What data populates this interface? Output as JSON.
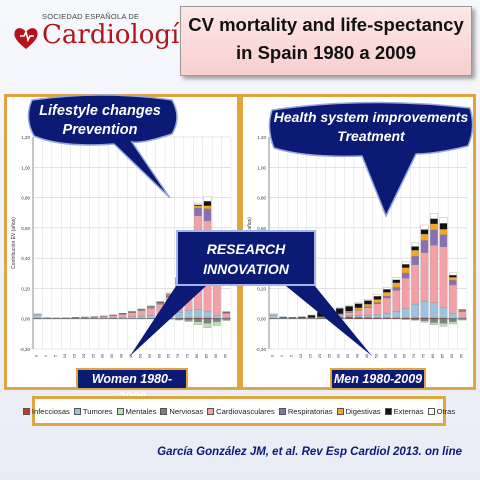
{
  "logo": {
    "top_text": "SOCIEDAD ESPAÑOLA DE",
    "main_text": "Cardiología",
    "brand_color": "#b3131a"
  },
  "title": {
    "line1": "CV mortality and life-spectancy",
    "line2": "in Spain 1980 a 2009"
  },
  "bubbles": {
    "left": {
      "line1": "Lifestyle changes",
      "line2": "Prevention"
    },
    "right": {
      "line1": "Health system improvements",
      "line2": "Treatment"
    },
    "center": {
      "line1": "RESEARCH",
      "line2": "INNOVATION"
    }
  },
  "panel_labels": {
    "women": "Women 1980-2009",
    "men": "Men 1980-2009"
  },
  "citation": "García González JM, et al. Rev Esp Cardiol 2013. on line",
  "chart_data": [
    {
      "type": "bar",
      "stacked": true,
      "panel": "women",
      "ylabel": "Contribución EV (años)",
      "ylim": [
        -0.2,
        1.2
      ],
      "yticks": [
        "1,20",
        "1,00",
        "0,80",
        "0,60",
        "0,40",
        "0,20",
        "0,00",
        "-0,20"
      ],
      "categories": [
        "0",
        "1",
        "5",
        "10",
        "15",
        "20",
        "25",
        "30",
        "35",
        "40",
        "45",
        "50",
        "55",
        "60",
        "65",
        "70",
        "75",
        "80",
        "85",
        "90",
        "95"
      ],
      "series": [
        {
          "name": "Infecciosas",
          "color": "#c0392b",
          "values": [
            0.003,
            0.002,
            0.001,
            0.001,
            0.001,
            0.001,
            0.001,
            0.001,
            0.001,
            0.001,
            0.001,
            0.002,
            0.002,
            0.003,
            0.003,
            0.004,
            0.005,
            0.006,
            0.006,
            0.004,
            0.002
          ]
        },
        {
          "name": "Tumores",
          "color": "#9cc3e0",
          "values": [
            0.025,
            0.004,
            0.003,
            0.003,
            0.003,
            0.003,
            0.004,
            0.006,
            0.008,
            0.01,
            0.012,
            0.015,
            0.018,
            0.022,
            0.03,
            0.04,
            0.05,
            0.055,
            0.04,
            0.015,
            0.003
          ]
        },
        {
          "name": "Mentales",
          "color": "#b8e0b0",
          "values": [
            0,
            0,
            0,
            0,
            0,
            0,
            0,
            0,
            0,
            0,
            0,
            0,
            0,
            0,
            0,
            0,
            0,
            0,
            0,
            0,
            0
          ]
        },
        {
          "name": "Nerviosas",
          "color": "#7f7f7f",
          "values": [
            0,
            0,
            0,
            0,
            0,
            0,
            0,
            0,
            0,
            0,
            0,
            0,
            0,
            0,
            0,
            0,
            0,
            0,
            0,
            0,
            0
          ]
        },
        {
          "name": "Cardiovasculares",
          "color": "#f2a1a6",
          "values": [
            0.001,
            0.001,
            0.001,
            0.002,
            0.003,
            0.004,
            0.006,
            0.008,
            0.012,
            0.018,
            0.026,
            0.036,
            0.05,
            0.07,
            0.11,
            0.19,
            0.37,
            0.62,
            0.6,
            0.21,
            0.03
          ]
        },
        {
          "name": "Respiratorias",
          "color": "#8a6fb5",
          "values": [
            0,
            0,
            0,
            0,
            0,
            0,
            0,
            0,
            0,
            0.001,
            0.002,
            0.003,
            0.004,
            0.006,
            0.01,
            0.018,
            0.03,
            0.05,
            0.08,
            0.035,
            0.006
          ]
        },
        {
          "name": "Digestivas",
          "color": "#f5a623",
          "values": [
            0,
            0,
            0,
            0,
            0,
            0,
            0,
            0,
            0.001,
            0.002,
            0.003,
            0.004,
            0.005,
            0.006,
            0.008,
            0.01,
            0.012,
            0.015,
            0.02,
            0.01,
            0.002
          ]
        },
        {
          "name": "Externas",
          "color": "#111111",
          "values": [
            0,
            0,
            0,
            0,
            0.002,
            0.003,
            0.003,
            0.003,
            0.003,
            0.003,
            0.003,
            0.003,
            0.003,
            0.004,
            0.004,
            0.004,
            0.005,
            0.006,
            0.03,
            0.01,
            0.002
          ]
        },
        {
          "name": "Otras",
          "color": "#ffffff",
          "values": [
            0.005,
            0.001,
            0.001,
            0.001,
            0.001,
            0.001,
            0.001,
            0.001,
            0.001,
            0.002,
            0.002,
            0.003,
            0.004,
            0.005,
            0.006,
            0.008,
            0.01,
            0.012,
            0.03,
            0.012,
            0.003
          ]
        }
      ],
      "negatives": [
        {
          "name": "Nerviosas",
          "color": "#7f7f7f",
          "values": [
            0,
            0,
            0,
            0,
            0,
            0,
            0,
            0,
            0,
            0,
            0,
            0,
            0,
            0,
            -0.002,
            -0.006,
            -0.012,
            -0.02,
            -0.03,
            -0.02,
            -0.006
          ]
        },
        {
          "name": "Mentales",
          "color": "#b8e0b0",
          "values": [
            0,
            0,
            0,
            0,
            0,
            0,
            0,
            0,
            0,
            0,
            0,
            0,
            0,
            0,
            -0.001,
            -0.003,
            -0.008,
            -0.02,
            -0.03,
            -0.025,
            -0.008
          ]
        }
      ]
    },
    {
      "type": "bar",
      "stacked": true,
      "panel": "men",
      "ylabel": "Contribución EV (años)",
      "ylim": [
        -0.2,
        1.2
      ],
      "yticks": [
        "1,20",
        "1,00",
        "0,80",
        "0,60",
        "0,40",
        "0,20",
        "0,00",
        "-0,20"
      ],
      "categories": [
        "0",
        "1",
        "5",
        "10",
        "15",
        "20",
        "25",
        "30",
        "35",
        "40",
        "45",
        "50",
        "55",
        "60",
        "65",
        "70",
        "75",
        "80",
        "85",
        "90",
        "95"
      ],
      "series": [
        {
          "name": "Infecciosas",
          "color": "#c0392b",
          "values": [
            0.004,
            0.002,
            0.001,
            0.001,
            0.002,
            0.003,
            0.006,
            0.01,
            0.012,
            0.01,
            0.008,
            0.007,
            0.007,
            0.007,
            0.007,
            0.007,
            0.007,
            0.006,
            0.005,
            0.003,
            0.001
          ]
        },
        {
          "name": "Tumores",
          "color": "#9cc3e0",
          "values": [
            0.02,
            0.004,
            0.003,
            0.003,
            0.003,
            0.004,
            0.005,
            0.006,
            0.008,
            0.012,
            0.016,
            0.022,
            0.03,
            0.04,
            0.06,
            0.09,
            0.11,
            0.1,
            0.07,
            0.03,
            0.006
          ]
        },
        {
          "name": "Mentales",
          "color": "#b8e0b0",
          "values": [
            0,
            0,
            0,
            0,
            0,
            0,
            0,
            0,
            0,
            0,
            0,
            0,
            0,
            0,
            0,
            0,
            0,
            0,
            0,
            0,
            0
          ]
        },
        {
          "name": "Nerviosas",
          "color": "#7f7f7f",
          "values": [
            0,
            0,
            0,
            0,
            0,
            0,
            0,
            0,
            0,
            0,
            0,
            0,
            0,
            0,
            0,
            0,
            0,
            0,
            0,
            0,
            0
          ]
        },
        {
          "name": "Cardiovasculares",
          "color": "#f2a1a6",
          "values": [
            0.001,
            0.001,
            0.001,
            0.002,
            0.003,
            0.005,
            0.008,
            0.012,
            0.02,
            0.035,
            0.05,
            0.07,
            0.1,
            0.14,
            0.2,
            0.26,
            0.32,
            0.38,
            0.4,
            0.19,
            0.04
          ]
        },
        {
          "name": "Respiratorias",
          "color": "#8a6fb5",
          "values": [
            0,
            0,
            0,
            0,
            0,
            0,
            0,
            0.001,
            0.002,
            0.003,
            0.005,
            0.008,
            0.012,
            0.02,
            0.035,
            0.055,
            0.08,
            0.1,
            0.08,
            0.03,
            0.006
          ]
        },
        {
          "name": "Digestivas",
          "color": "#f5a623",
          "values": [
            0,
            0,
            0,
            0,
            0,
            0.001,
            0.002,
            0.004,
            0.008,
            0.012,
            0.016,
            0.02,
            0.025,
            0.03,
            0.035,
            0.04,
            0.042,
            0.04,
            0.035,
            0.02,
            0.004
          ]
        },
        {
          "name": "Externas",
          "color": "#111111",
          "values": [
            0.002,
            0.004,
            0.004,
            0.006,
            0.015,
            0.03,
            0.035,
            0.035,
            0.032,
            0.028,
            0.025,
            0.022,
            0.02,
            0.02,
            0.022,
            0.025,
            0.03,
            0.035,
            0.04,
            0.015,
            0.003
          ]
        },
        {
          "name": "Otras",
          "color": "#ffffff",
          "values": [
            0.008,
            0.002,
            0.001,
            0.001,
            0.002,
            0.002,
            0.003,
            0.004,
            0.005,
            0.006,
            0.008,
            0.01,
            0.012,
            0.015,
            0.02,
            0.025,
            0.03,
            0.035,
            0.04,
            0.015,
            0.003
          ]
        }
      ],
      "negatives": [
        {
          "name": "Nerviosas",
          "color": "#7f7f7f",
          "values": [
            0,
            0,
            0,
            0,
            0,
            0,
            0,
            0,
            0,
            0,
            0,
            0,
            0,
            0,
            -0.003,
            -0.008,
            -0.015,
            -0.025,
            -0.03,
            -0.02,
            -0.005
          ]
        },
        {
          "name": "Mentales",
          "color": "#b8e0b0",
          "values": [
            0,
            0,
            0,
            0,
            0,
            0,
            0,
            0,
            0,
            0,
            0,
            0,
            0,
            0,
            -0.001,
            -0.003,
            -0.008,
            -0.015,
            -0.02,
            -0.015,
            -0.004
          ]
        }
      ]
    }
  ]
}
